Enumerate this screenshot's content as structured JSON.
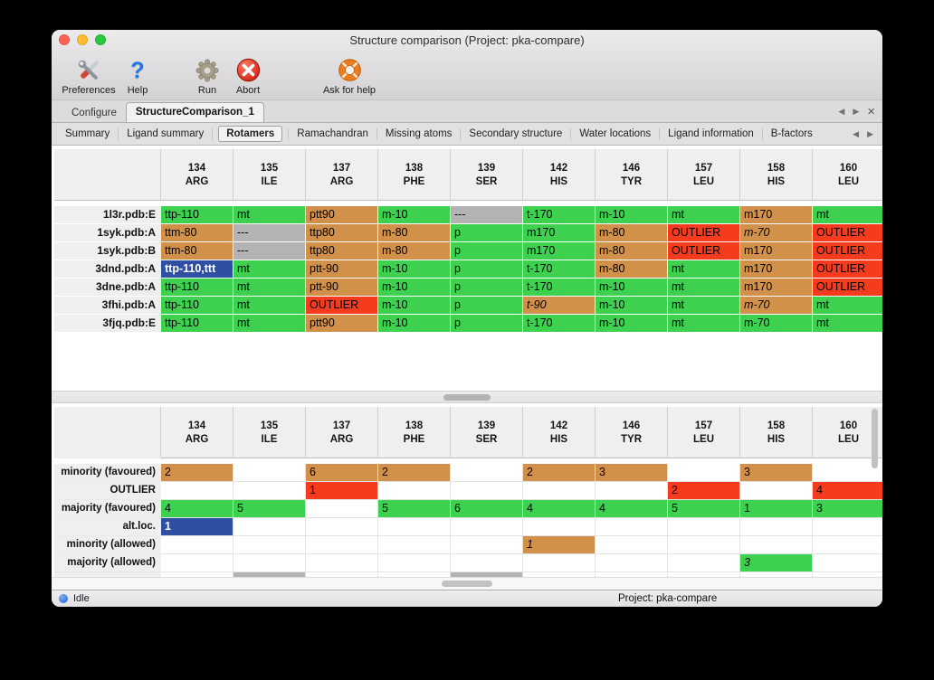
{
  "window": {
    "title": "Structure comparison (Project: pka-compare)"
  },
  "toolbar": {
    "items": [
      {
        "id": "preferences",
        "label": "Preferences"
      },
      {
        "id": "help",
        "label": "Help"
      },
      {
        "id": "run",
        "label": "Run"
      },
      {
        "id": "abort",
        "label": "Abort"
      },
      {
        "id": "ask-for-help",
        "label": "Ask for help"
      }
    ]
  },
  "icons": {
    "help_glyph": "?",
    "scroll_left": "◀",
    "scroll_right": "▶",
    "close_tab": "×"
  },
  "tabs": {
    "primary": [
      {
        "label": "Configure",
        "active": false
      },
      {
        "label": "StructureComparison_1",
        "active": true
      }
    ],
    "secondary": [
      {
        "label": "Summary",
        "active": false
      },
      {
        "label": "Ligand summary",
        "active": false
      },
      {
        "label": "Rotamers",
        "active": true
      },
      {
        "label": "Ramachandran",
        "active": false
      },
      {
        "label": "Missing atoms",
        "active": false
      },
      {
        "label": "Secondary structure",
        "active": false
      },
      {
        "label": "Water locations",
        "active": false
      },
      {
        "label": "Ligand information",
        "active": false
      },
      {
        "label": "B-factors",
        "active": false
      }
    ]
  },
  "colors": {
    "favoured": "#3ed14f",
    "allowed": "#d2914a",
    "outlier": "#f53b1d",
    "missing": "#b3b3b3",
    "selected": "#2e4fa2",
    "mac_red": "#ff5f57",
    "mac_yellow": "#febc2e",
    "mac_green": "#28c840",
    "status_dot": "#1a5fd6"
  },
  "columns": [
    {
      "num": "134",
      "res": "ARG"
    },
    {
      "num": "135",
      "res": "ILE"
    },
    {
      "num": "137",
      "res": "ARG"
    },
    {
      "num": "138",
      "res": "PHE"
    },
    {
      "num": "139",
      "res": "SER"
    },
    {
      "num": "142",
      "res": "HIS"
    },
    {
      "num": "146",
      "res": "TYR"
    },
    {
      "num": "157",
      "res": "LEU"
    },
    {
      "num": "158",
      "res": "HIS"
    },
    {
      "num": "160",
      "res": "LEU"
    }
  ],
  "structures_table": {
    "rows": [
      {
        "label": "1l3r.pdb:E",
        "cells": [
          {
            "text": "ttp-110",
            "state": "favoured"
          },
          {
            "text": "mt",
            "state": "favoured"
          },
          {
            "text": "ptt90",
            "state": "allowed"
          },
          {
            "text": "m-10",
            "state": "favoured"
          },
          {
            "text": "---",
            "state": "missing"
          },
          {
            "text": "t-170",
            "state": "favoured"
          },
          {
            "text": "m-10",
            "state": "favoured"
          },
          {
            "text": "mt",
            "state": "favoured"
          },
          {
            "text": "m170",
            "state": "allowed"
          },
          {
            "text": "mt",
            "state": "favoured"
          }
        ]
      },
      {
        "label": "1syk.pdb:A",
        "cells": [
          {
            "text": "ttm-80",
            "state": "allowed"
          },
          {
            "text": "---",
            "state": "missing"
          },
          {
            "text": "ttp80",
            "state": "allowed"
          },
          {
            "text": "m-80",
            "state": "allowed"
          },
          {
            "text": "p",
            "state": "favoured"
          },
          {
            "text": "m170",
            "state": "favoured"
          },
          {
            "text": "m-80",
            "state": "allowed"
          },
          {
            "text": "OUTLIER",
            "state": "outlier"
          },
          {
            "text": "m-70",
            "state": "allowed",
            "italic": true
          },
          {
            "text": "OUTLIER",
            "state": "outlier"
          }
        ]
      },
      {
        "label": "1syk.pdb:B",
        "cells": [
          {
            "text": "ttm-80",
            "state": "allowed"
          },
          {
            "text": "---",
            "state": "missing"
          },
          {
            "text": "ttp80",
            "state": "allowed"
          },
          {
            "text": "m-80",
            "state": "allowed"
          },
          {
            "text": "p",
            "state": "favoured"
          },
          {
            "text": "m170",
            "state": "favoured"
          },
          {
            "text": "m-80",
            "state": "allowed"
          },
          {
            "text": "OUTLIER",
            "state": "outlier"
          },
          {
            "text": "m170",
            "state": "allowed"
          },
          {
            "text": "OUTLIER",
            "state": "outlier"
          }
        ]
      },
      {
        "label": "3dnd.pdb:A",
        "cells": [
          {
            "text": "ttp-110,ttt",
            "state": "selected"
          },
          {
            "text": "mt",
            "state": "favoured"
          },
          {
            "text": "ptt-90",
            "state": "allowed"
          },
          {
            "text": "m-10",
            "state": "favoured"
          },
          {
            "text": "p",
            "state": "favoured"
          },
          {
            "text": "t-170",
            "state": "favoured"
          },
          {
            "text": "m-80",
            "state": "allowed"
          },
          {
            "text": "mt",
            "state": "favoured"
          },
          {
            "text": "m170",
            "state": "allowed"
          },
          {
            "text": "OUTLIER",
            "state": "outlier"
          }
        ]
      },
      {
        "label": "3dne.pdb:A",
        "cells": [
          {
            "text": "ttp-110",
            "state": "favoured"
          },
          {
            "text": "mt",
            "state": "favoured"
          },
          {
            "text": "ptt-90",
            "state": "allowed"
          },
          {
            "text": "m-10",
            "state": "favoured"
          },
          {
            "text": "p",
            "state": "favoured"
          },
          {
            "text": "t-170",
            "state": "favoured"
          },
          {
            "text": "m-10",
            "state": "favoured"
          },
          {
            "text": "mt",
            "state": "favoured"
          },
          {
            "text": "m170",
            "state": "allowed"
          },
          {
            "text": "OUTLIER",
            "state": "outlier"
          }
        ]
      },
      {
        "label": "3fhi.pdb:A",
        "cells": [
          {
            "text": "ttp-110",
            "state": "favoured"
          },
          {
            "text": "mt",
            "state": "favoured"
          },
          {
            "text": "OUTLIER",
            "state": "outlier"
          },
          {
            "text": "m-10",
            "state": "favoured"
          },
          {
            "text": "p",
            "state": "favoured"
          },
          {
            "text": "t-90",
            "state": "allowed",
            "italic": true
          },
          {
            "text": "m-10",
            "state": "favoured"
          },
          {
            "text": "mt",
            "state": "favoured"
          },
          {
            "text": "m-70",
            "state": "allowed",
            "italic": true
          },
          {
            "text": "mt",
            "state": "favoured"
          }
        ]
      },
      {
        "label": "3fjq.pdb:E",
        "cells": [
          {
            "text": "ttp-110",
            "state": "favoured"
          },
          {
            "text": "mt",
            "state": "favoured"
          },
          {
            "text": "ptt90",
            "state": "allowed"
          },
          {
            "text": "m-10",
            "state": "favoured"
          },
          {
            "text": "p",
            "state": "favoured"
          },
          {
            "text": "t-170",
            "state": "favoured"
          },
          {
            "text": "m-10",
            "state": "favoured"
          },
          {
            "text": "mt",
            "state": "favoured"
          },
          {
            "text": "m-70",
            "state": "favoured"
          },
          {
            "text": "mt",
            "state": "favoured"
          }
        ]
      }
    ]
  },
  "summary_table": {
    "rows": [
      {
        "label": "minority (favoured)",
        "cells": [
          {
            "text": "2",
            "state": "allowed"
          },
          {
            "text": "",
            "state": "empty"
          },
          {
            "text": "6",
            "state": "allowed"
          },
          {
            "text": "2",
            "state": "allowed"
          },
          {
            "text": "",
            "state": "empty"
          },
          {
            "text": "2",
            "state": "allowed"
          },
          {
            "text": "3",
            "state": "allowed"
          },
          {
            "text": "",
            "state": "empty"
          },
          {
            "text": "3",
            "state": "allowed"
          },
          {
            "text": "",
            "state": "empty"
          }
        ]
      },
      {
        "label": "OUTLIER",
        "cells": [
          {
            "text": "",
            "state": "empty"
          },
          {
            "text": "",
            "state": "empty"
          },
          {
            "text": "1",
            "state": "outlier"
          },
          {
            "text": "",
            "state": "empty"
          },
          {
            "text": "",
            "state": "empty"
          },
          {
            "text": "",
            "state": "empty"
          },
          {
            "text": "",
            "state": "empty"
          },
          {
            "text": "2",
            "state": "outlier"
          },
          {
            "text": "",
            "state": "empty"
          },
          {
            "text": "4",
            "state": "outlier"
          }
        ]
      },
      {
        "label": "majority (favoured)",
        "cells": [
          {
            "text": "4",
            "state": "favoured"
          },
          {
            "text": "5",
            "state": "favoured"
          },
          {
            "text": "",
            "state": "empty"
          },
          {
            "text": "5",
            "state": "favoured"
          },
          {
            "text": "6",
            "state": "favoured"
          },
          {
            "text": "4",
            "state": "favoured"
          },
          {
            "text": "4",
            "state": "favoured"
          },
          {
            "text": "5",
            "state": "favoured"
          },
          {
            "text": "1",
            "state": "favoured"
          },
          {
            "text": "3",
            "state": "favoured"
          }
        ]
      },
      {
        "label": "alt.loc.",
        "cells": [
          {
            "text": "1",
            "state": "selected"
          },
          {
            "text": "",
            "state": "empty"
          },
          {
            "text": "",
            "state": "empty"
          },
          {
            "text": "",
            "state": "empty"
          },
          {
            "text": "",
            "state": "empty"
          },
          {
            "text": "",
            "state": "empty"
          },
          {
            "text": "",
            "state": "empty"
          },
          {
            "text": "",
            "state": "empty"
          },
          {
            "text": "",
            "state": "empty"
          },
          {
            "text": "",
            "state": "empty"
          }
        ]
      },
      {
        "label": "minority (allowed)",
        "cells": [
          {
            "text": "",
            "state": "empty"
          },
          {
            "text": "",
            "state": "empty"
          },
          {
            "text": "",
            "state": "empty"
          },
          {
            "text": "",
            "state": "empty"
          },
          {
            "text": "",
            "state": "empty"
          },
          {
            "text": "1",
            "state": "allowed",
            "italic": true
          },
          {
            "text": "",
            "state": "empty"
          },
          {
            "text": "",
            "state": "empty"
          },
          {
            "text": "",
            "state": "empty"
          },
          {
            "text": "",
            "state": "empty"
          }
        ]
      },
      {
        "label": "majority (allowed)",
        "cells": [
          {
            "text": "",
            "state": "empty"
          },
          {
            "text": "",
            "state": "empty"
          },
          {
            "text": "",
            "state": "empty"
          },
          {
            "text": "",
            "state": "empty"
          },
          {
            "text": "",
            "state": "empty"
          },
          {
            "text": "",
            "state": "empty"
          },
          {
            "text": "",
            "state": "empty"
          },
          {
            "text": "",
            "state": "empty"
          },
          {
            "text": "3",
            "state": "favoured",
            "italic": true
          },
          {
            "text": "",
            "state": "empty"
          }
        ]
      },
      {
        "label": "",
        "height": 6,
        "cells": [
          {
            "text": "",
            "state": "empty"
          },
          {
            "text": "",
            "state": "missing"
          },
          {
            "text": "",
            "state": "empty"
          },
          {
            "text": "",
            "state": "empty"
          },
          {
            "text": "",
            "state": "missing"
          },
          {
            "text": "",
            "state": "empty"
          },
          {
            "text": "",
            "state": "empty"
          },
          {
            "text": "",
            "state": "empty"
          },
          {
            "text": "",
            "state": "empty"
          },
          {
            "text": "",
            "state": "empty"
          }
        ]
      }
    ]
  },
  "statusbar": {
    "status": "Idle",
    "project": "Project: pka-compare"
  }
}
